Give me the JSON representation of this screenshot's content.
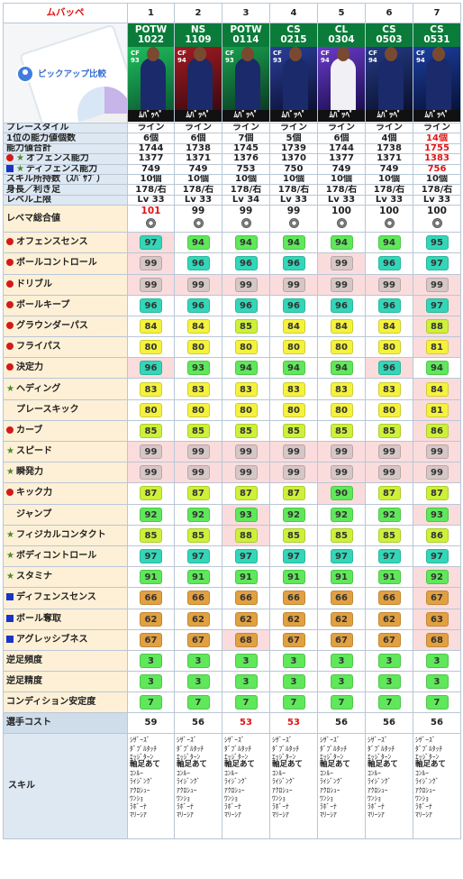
{
  "player": "ムバッペ",
  "logo_text": "ピックアップ比較",
  "col_numbers": [
    "1",
    "2",
    "3",
    "4",
    "5",
    "6",
    "7"
  ],
  "cards": [
    {
      "type": "POTW",
      "num": "1022",
      "pos": "CF",
      "ovr": "93",
      "bottom": "ﾑﾊﾞｯﾍﾟ"
    },
    {
      "type": "NS",
      "num": "1109",
      "pos": "CF",
      "ovr": "94",
      "bottom": "ﾑﾊﾞｯﾍﾟ"
    },
    {
      "type": "POTW",
      "num": "0114",
      "pos": "CF",
      "ovr": "93",
      "bottom": "ﾑﾊﾞｯﾍﾟ"
    },
    {
      "type": "CS",
      "num": "0215",
      "pos": "CF",
      "ovr": "93",
      "bottom": "ﾑﾊﾞｯﾍﾟ"
    },
    {
      "type": "CL",
      "num": "0304",
      "pos": "CF",
      "ovr": "94",
      "bottom": "ﾑﾊﾞｯﾍﾟ"
    },
    {
      "type": "CS",
      "num": "0503",
      "pos": "CF",
      "ovr": "94",
      "bottom": "ﾑﾊﾞｯﾍﾟ"
    },
    {
      "type": "CS",
      "num": "0531",
      "pos": "CF",
      "ovr": "94",
      "bottom": "ﾑﾊﾞｯﾍﾟ"
    }
  ],
  "info_rows": [
    {
      "label": "プレースタイル",
      "values": [
        "ライン",
        "ライン",
        "ライン",
        "ライン",
        "ライン",
        "ライン",
        "ライン"
      ]
    },
    {
      "label": "1位の能力値個数",
      "values": [
        "6個",
        "6個",
        "7個",
        "5個",
        "6個",
        "4個",
        "14個"
      ]
    },
    {
      "label": "能力値合計",
      "values": [
        "1744",
        "1738",
        "1745",
        "1739",
        "1744",
        "1738",
        "1755"
      ]
    },
    {
      "label": "オフェンス能力",
      "values": [
        "1377",
        "1371",
        "1376",
        "1370",
        "1377",
        "1371",
        "1383"
      ]
    },
    {
      "label": "ディフェンス能力",
      "values": [
        "749",
        "749",
        "753",
        "750",
        "749",
        "749",
        "756"
      ]
    },
    {
      "label": "スキル所持数（ｽﾊﾟｻﾌﾞ）",
      "values": [
        "10個",
        "10個",
        "10個",
        "10個",
        "10個",
        "10個",
        "10個"
      ]
    },
    {
      "label": "身長／利き足",
      "values": [
        "178/右",
        "178/右",
        "178/右",
        "178/右",
        "178/右",
        "178/右",
        "178/右"
      ]
    },
    {
      "label": "レベル上限",
      "values": [
        "Lv 33",
        "Lv 33",
        "Lv 34",
        "Lv 33",
        "Lv 33",
        "Lv 33",
        "Lv 33"
      ]
    }
  ],
  "overall": {
    "label": "レベマ総合値",
    "values": [
      "101",
      "99",
      "99",
      "99",
      "100",
      "100",
      "100"
    ]
  },
  "stats": [
    {
      "label": "オフェンスセンス",
      "values": [
        "97",
        "94",
        "94",
        "94",
        "94",
        "94",
        "95"
      ]
    },
    {
      "label": "ボールコントロール",
      "values": [
        "99",
        "96",
        "96",
        "96",
        "99",
        "96",
        "97"
      ]
    },
    {
      "label": "ドリブル",
      "values": [
        "99",
        "99",
        "99",
        "99",
        "99",
        "99",
        "99"
      ]
    },
    {
      "label": "ボールキープ",
      "values": [
        "96",
        "96",
        "96",
        "96",
        "96",
        "96",
        "97"
      ]
    },
    {
      "label": "グラウンダーパス",
      "values": [
        "84",
        "84",
        "85",
        "84",
        "84",
        "84",
        "88"
      ]
    },
    {
      "label": "フライパス",
      "values": [
        "80",
        "80",
        "80",
        "80",
        "80",
        "80",
        "81"
      ]
    },
    {
      "label": "決定力",
      "values": [
        "96",
        "93",
        "94",
        "94",
        "94",
        "96",
        "94"
      ]
    },
    {
      "label": "ヘディング",
      "values": [
        "83",
        "83",
        "83",
        "83",
        "83",
        "83",
        "84"
      ]
    },
    {
      "label": "プレースキック",
      "values": [
        "80",
        "80",
        "80",
        "80",
        "80",
        "80",
        "81"
      ]
    },
    {
      "label": "カーブ",
      "values": [
        "85",
        "85",
        "85",
        "85",
        "85",
        "85",
        "86"
      ]
    },
    {
      "label": "スピード",
      "values": [
        "99",
        "99",
        "99",
        "99",
        "99",
        "99",
        "99"
      ]
    },
    {
      "label": "瞬発力",
      "values": [
        "99",
        "99",
        "99",
        "99",
        "99",
        "99",
        "99"
      ]
    },
    {
      "label": "キック力",
      "values": [
        "87",
        "87",
        "87",
        "87",
        "90",
        "87",
        "87"
      ]
    },
    {
      "label": "ジャンプ",
      "values": [
        "92",
        "92",
        "93",
        "92",
        "92",
        "92",
        "93"
      ]
    },
    {
      "label": "フィジカルコンタクト",
      "values": [
        "85",
        "85",
        "88",
        "85",
        "85",
        "85",
        "86"
      ]
    },
    {
      "label": "ボディコントロール",
      "values": [
        "97",
        "97",
        "97",
        "97",
        "97",
        "97",
        "97"
      ]
    },
    {
      "label": "スタミナ",
      "values": [
        "91",
        "91",
        "91",
        "91",
        "91",
        "91",
        "92"
      ]
    },
    {
      "label": "ディフェンスセンス",
      "values": [
        "66",
        "66",
        "66",
        "66",
        "66",
        "66",
        "67"
      ]
    },
    {
      "label": "ボール奪取",
      "values": [
        "62",
        "62",
        "62",
        "62",
        "62",
        "62",
        "63"
      ]
    },
    {
      "label": "アグレッシブネス",
      "values": [
        "67",
        "67",
        "68",
        "67",
        "67",
        "67",
        "68"
      ]
    }
  ],
  "extra": [
    {
      "label": "逆足頻度",
      "values": [
        "3",
        "3",
        "3",
        "3",
        "3",
        "3",
        "3"
      ]
    },
    {
      "label": "逆足精度",
      "values": [
        "3",
        "3",
        "3",
        "3",
        "3",
        "3",
        "3"
      ]
    },
    {
      "label": "コンディション安定度",
      "values": [
        "7",
        "7",
        "7",
        "7",
        "7",
        "7",
        "7"
      ]
    }
  ],
  "cost": {
    "label": "選手コスト",
    "values": [
      "59",
      "56",
      "53",
      "53",
      "56",
      "56",
      "56"
    ]
  },
  "skill_label": "スキル",
  "skills": [
    "ｼｻﾞｰｽﾞ",
    "ﾀﾞﾌﾞﾙﾀｯﾁ",
    "ｴｯｼﾞﾀｰﾝ",
    "軸足あて",
    "ｺﾝﾙｰ",
    "ﾗｲｼﾞﾝｸﾞ",
    "ｱｸﾛｼｭｰ",
    "ﾜﾝｼｮ",
    "ﾗﾎﾞｰﾅ",
    "ﾏﾘｰｼｱ"
  ],
  "colors": {
    "red": "#e01515",
    "header_bg": "#dde8f3",
    "stat_bg": "#fdf0d6",
    "card_top": "#0b7b3a"
  }
}
